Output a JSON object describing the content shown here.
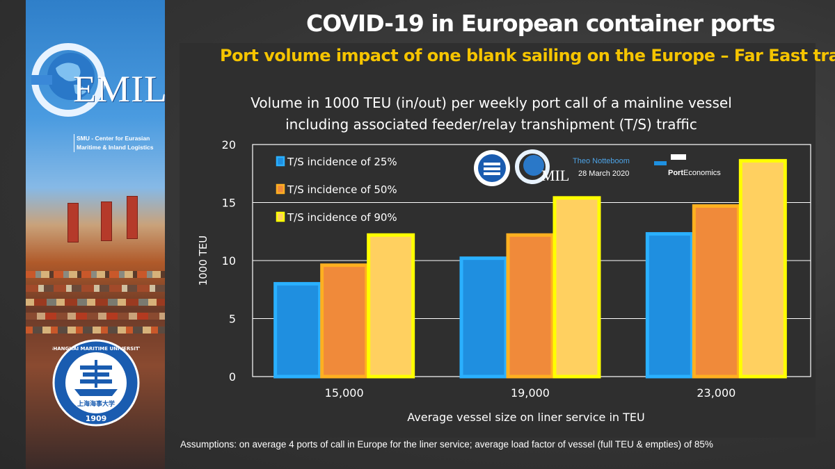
{
  "slide": {
    "title": "COVID-19 in European container ports",
    "subtitle": "Port volume impact of one blank sailing on the Europe – Far East trade",
    "assumptions": "Assumptions: on average 4 ports of call in Europe for the liner service; average load factor of vessel (full TEU & empties) of 85%"
  },
  "sidebar": {
    "logo_text": "EMIL",
    "logo_subtitle_line1": "SMU - Center for Eurasian",
    "logo_subtitle_line2": "Maritime & Inland Logistics",
    "seal_text": "SHANGHAI MARITIME UNIVERSITY",
    "seal_year": "1909",
    "seal_chinese": "上海海事大学"
  },
  "credits": {
    "author": "Theo Notteboom",
    "date": "28 March 2020",
    "brand_bold": "Port",
    "brand_rest": "Economics"
  },
  "chart_data": {
    "type": "bar",
    "title": "Volume in 1000 TEU (in/out) per weekly port call of a mainline vessel",
    "title_line2": "including associated feeder/relay transhipment (T/S) traffic",
    "xlabel": "Average vessel size on liner service in TEU",
    "ylabel": "1000 TEU",
    "categories": [
      "15,000",
      "19,000",
      "23,000"
    ],
    "ylim": [
      0,
      20
    ],
    "yticks": [
      0,
      5,
      10,
      15,
      20
    ],
    "grid": true,
    "legend_position": "top-left",
    "series": [
      {
        "name": "T/S incidence of 25%",
        "values": [
          8.0,
          10.2,
          12.3
        ],
        "color": "#1f8fe0",
        "edge": "#2ab0ff"
      },
      {
        "name": "T/S incidence of 50%",
        "values": [
          9.6,
          12.2,
          14.7
        ],
        "color": "#f08a3a",
        "edge": "#ffb020"
      },
      {
        "name": "T/S incidence of 90%",
        "values": [
          12.2,
          15.4,
          18.6
        ],
        "color": "#ffd060",
        "edge": "#ffff00"
      }
    ]
  }
}
